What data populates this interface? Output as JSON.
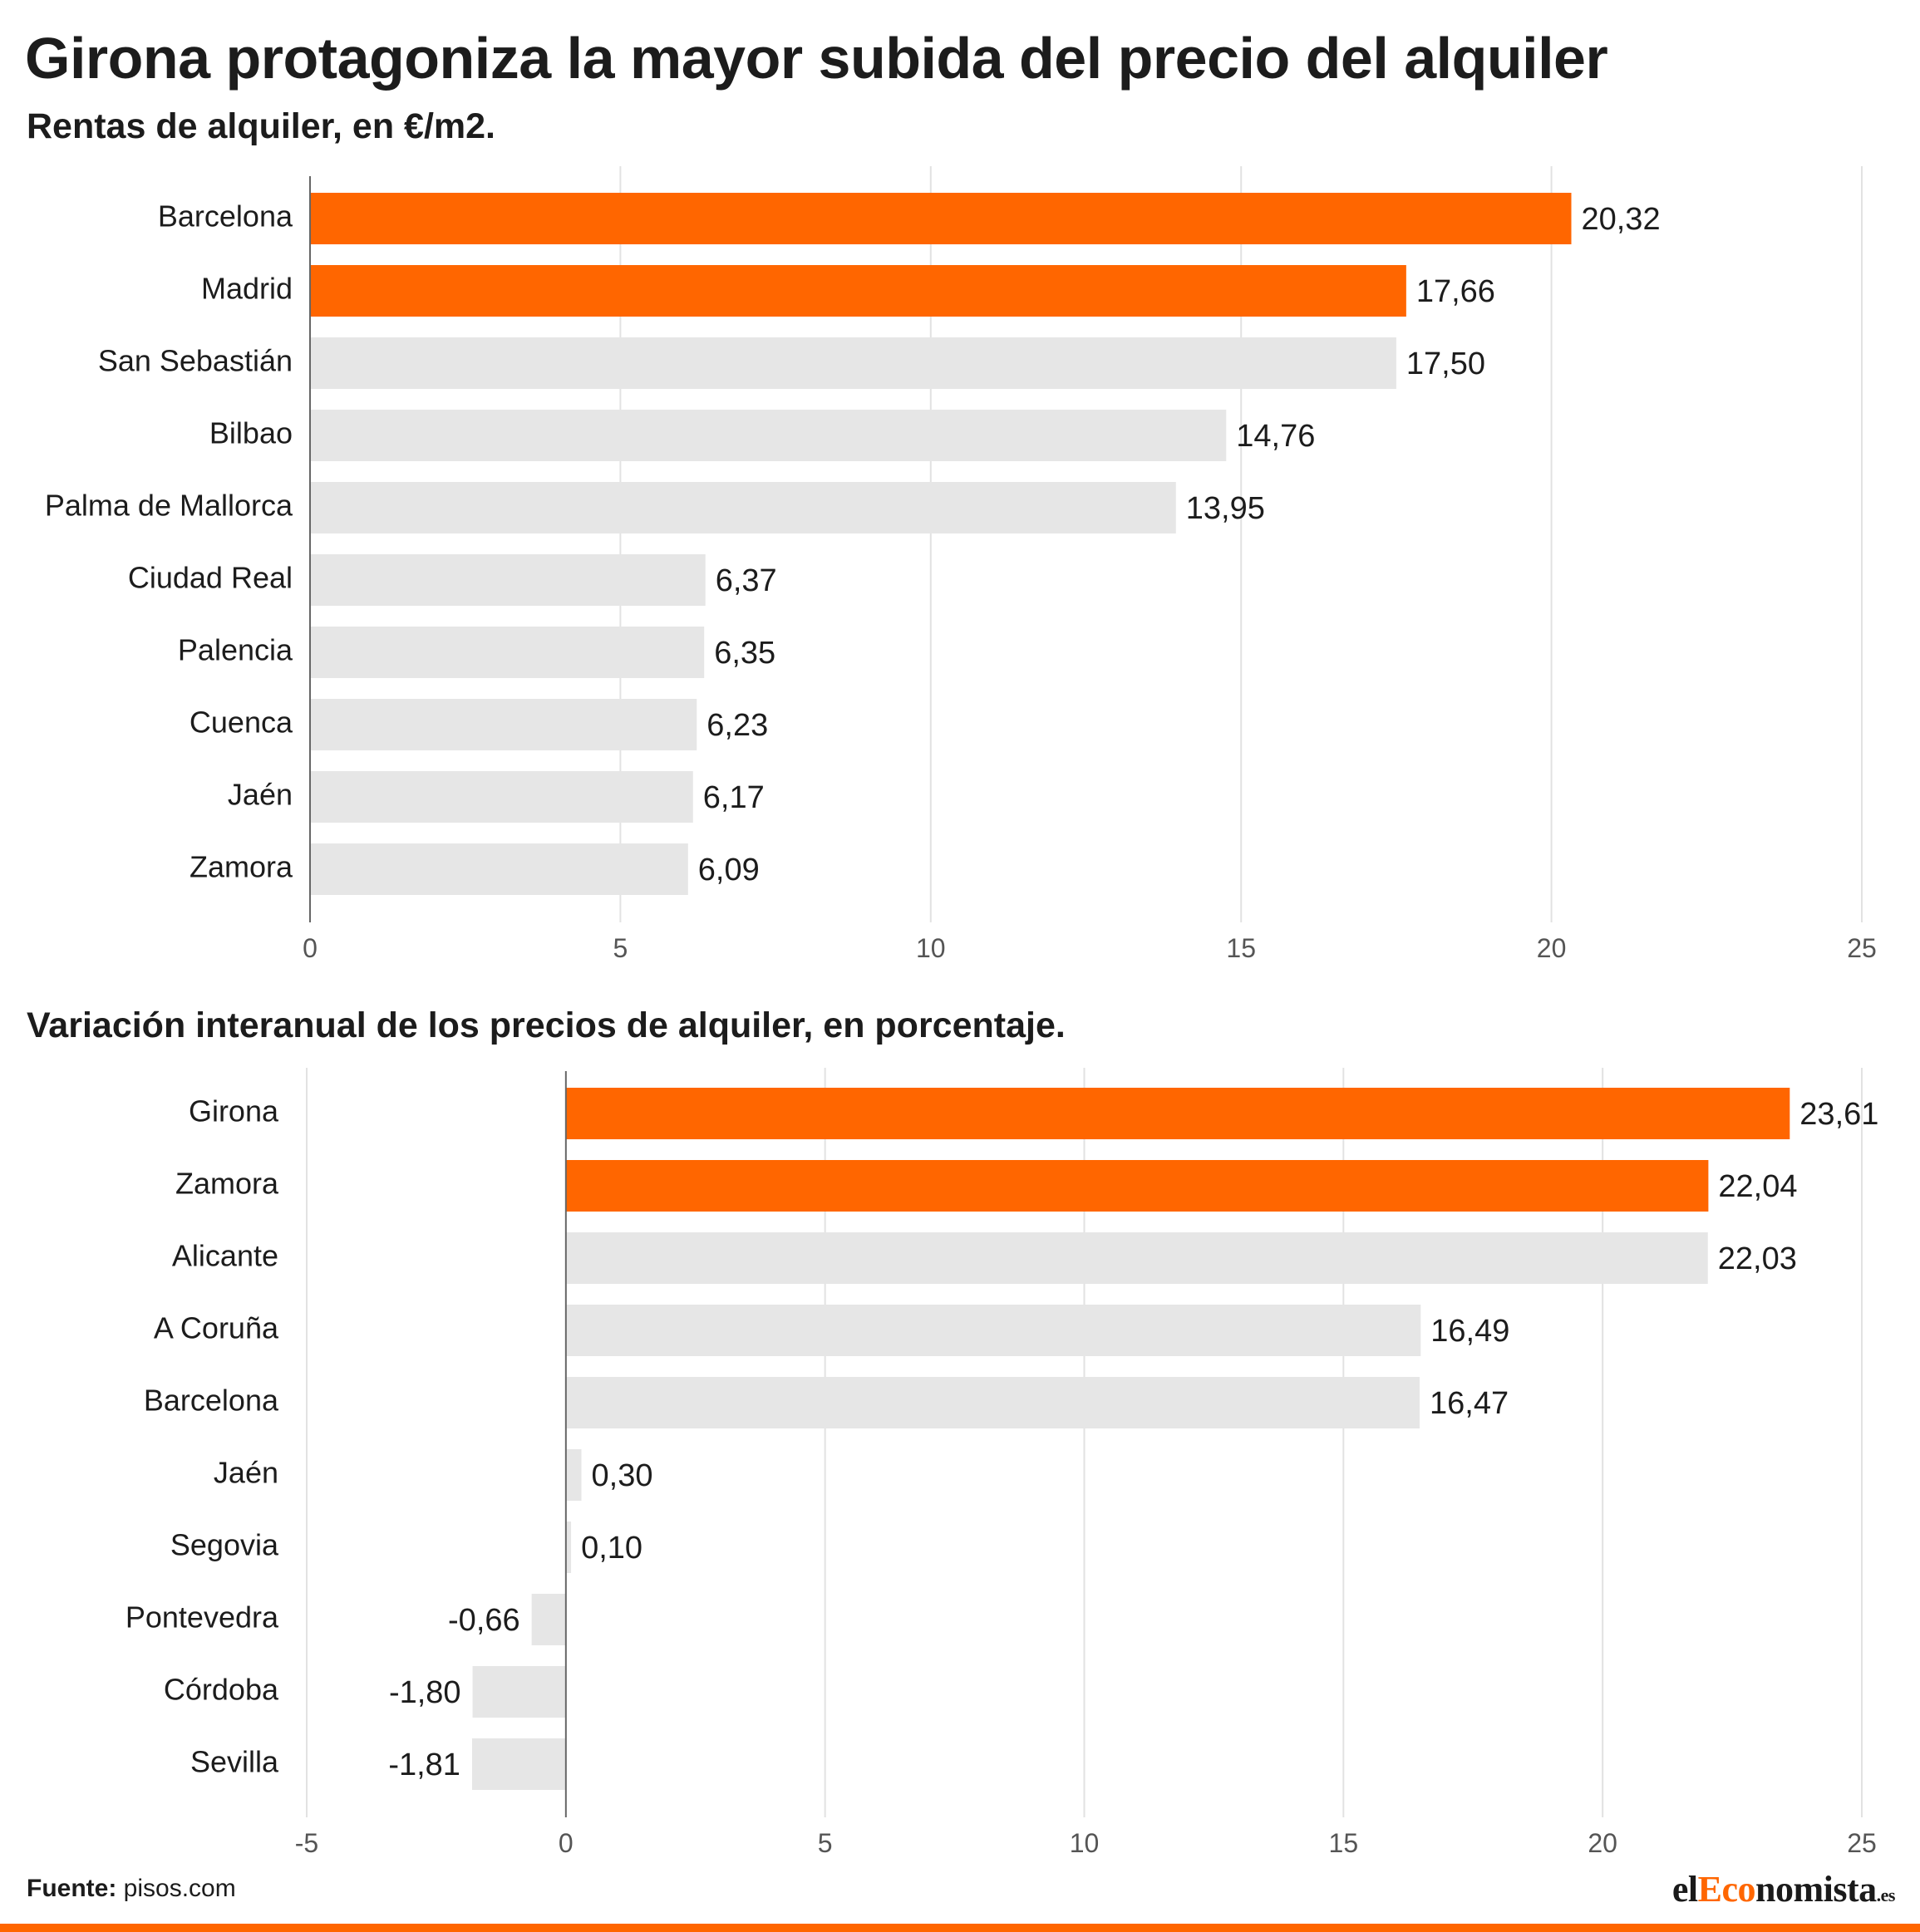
{
  "title": "Girona protagoniza la mayor subida del precio del alquiler",
  "colors": {
    "highlight": "#ff6600",
    "bar": "#e6e6e6",
    "grid": "#e2e2e2",
    "axis": "#666666"
  },
  "chart_data": [
    {
      "type": "bar",
      "orientation": "horizontal",
      "title": "Rentas de alquiler, en €/m2.",
      "categories": [
        "Barcelona",
        "Madrid",
        "San Sebastián",
        "Bilbao",
        "Palma de Mallorca",
        "Ciudad Real",
        "Palencia",
        "Cuenca",
        "Jaén",
        "Zamora"
      ],
      "values": [
        20.32,
        17.66,
        17.5,
        14.76,
        13.95,
        6.37,
        6.35,
        6.23,
        6.17,
        6.09
      ],
      "value_labels": [
        "20,32",
        "17,66",
        "17,50",
        "14,76",
        "13,95",
        "6,37",
        "6,35",
        "6,23",
        "6,17",
        "6,09"
      ],
      "highlighted": [
        "Barcelona",
        "Madrid"
      ],
      "xlim": [
        0,
        25
      ],
      "xticks": [
        0,
        5,
        10,
        15,
        20,
        25
      ],
      "grid": true
    },
    {
      "type": "bar",
      "orientation": "horizontal",
      "title": "Variación interanual de los precios de alquiler, en porcentaje.",
      "categories": [
        "Girona",
        "Zamora",
        "Alicante",
        "A Coruña",
        "Barcelona",
        "Jaén",
        "Segovia",
        "Pontevedra",
        "Córdoba",
        "Sevilla"
      ],
      "values": [
        23.61,
        22.04,
        22.03,
        16.49,
        16.47,
        0.3,
        0.1,
        -0.66,
        -1.8,
        -1.81
      ],
      "value_labels": [
        "23,61",
        "22,04",
        "22,03",
        "16,49",
        "16,47",
        "0,30",
        "0,10",
        "-0,66",
        "-1,80",
        "-1,81"
      ],
      "highlighted": [
        "Girona",
        "Zamora"
      ],
      "xlim": [
        -5,
        25
      ],
      "xticks": [
        -5,
        0,
        5,
        10,
        15,
        20,
        25
      ],
      "grid": true
    }
  ],
  "footer": {
    "source_label": "Fuente:",
    "source_value": "pisos.com"
  },
  "logo": {
    "part1": "el",
    "part2": "Eco",
    "part3": "nomista",
    "tld": ".es"
  }
}
